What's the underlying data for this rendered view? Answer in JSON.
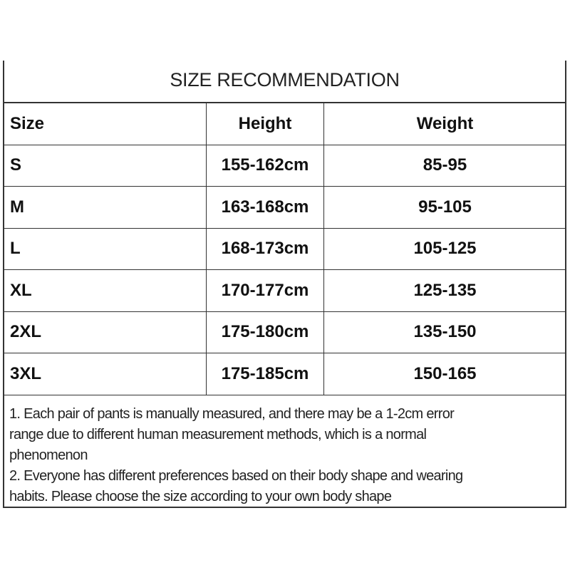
{
  "title": "SIZE RECOMMENDATION",
  "table": {
    "headers": [
      "Size",
      "Height",
      "Weight"
    ],
    "rows": [
      [
        "S",
        "155-162cm",
        "85-95"
      ],
      [
        "M",
        "163-168cm",
        "95-105"
      ],
      [
        "L",
        "168-173cm",
        "105-125"
      ],
      [
        "XL",
        "170-177cm",
        "125-135"
      ],
      [
        "2XL",
        "175-180cm",
        "135-150"
      ],
      [
        "3XL",
        "175-185cm",
        "150-165"
      ]
    ]
  },
  "notes": [
    "1. Each pair of pants is manually measured, and there may be a 1-2cm error",
    "range due to different human measurement methods, which is a normal",
    "phenomenon",
    "2. Everyone has different preferences based on their body shape and wearing",
    "habits. Please choose the size according to your own body shape"
  ]
}
